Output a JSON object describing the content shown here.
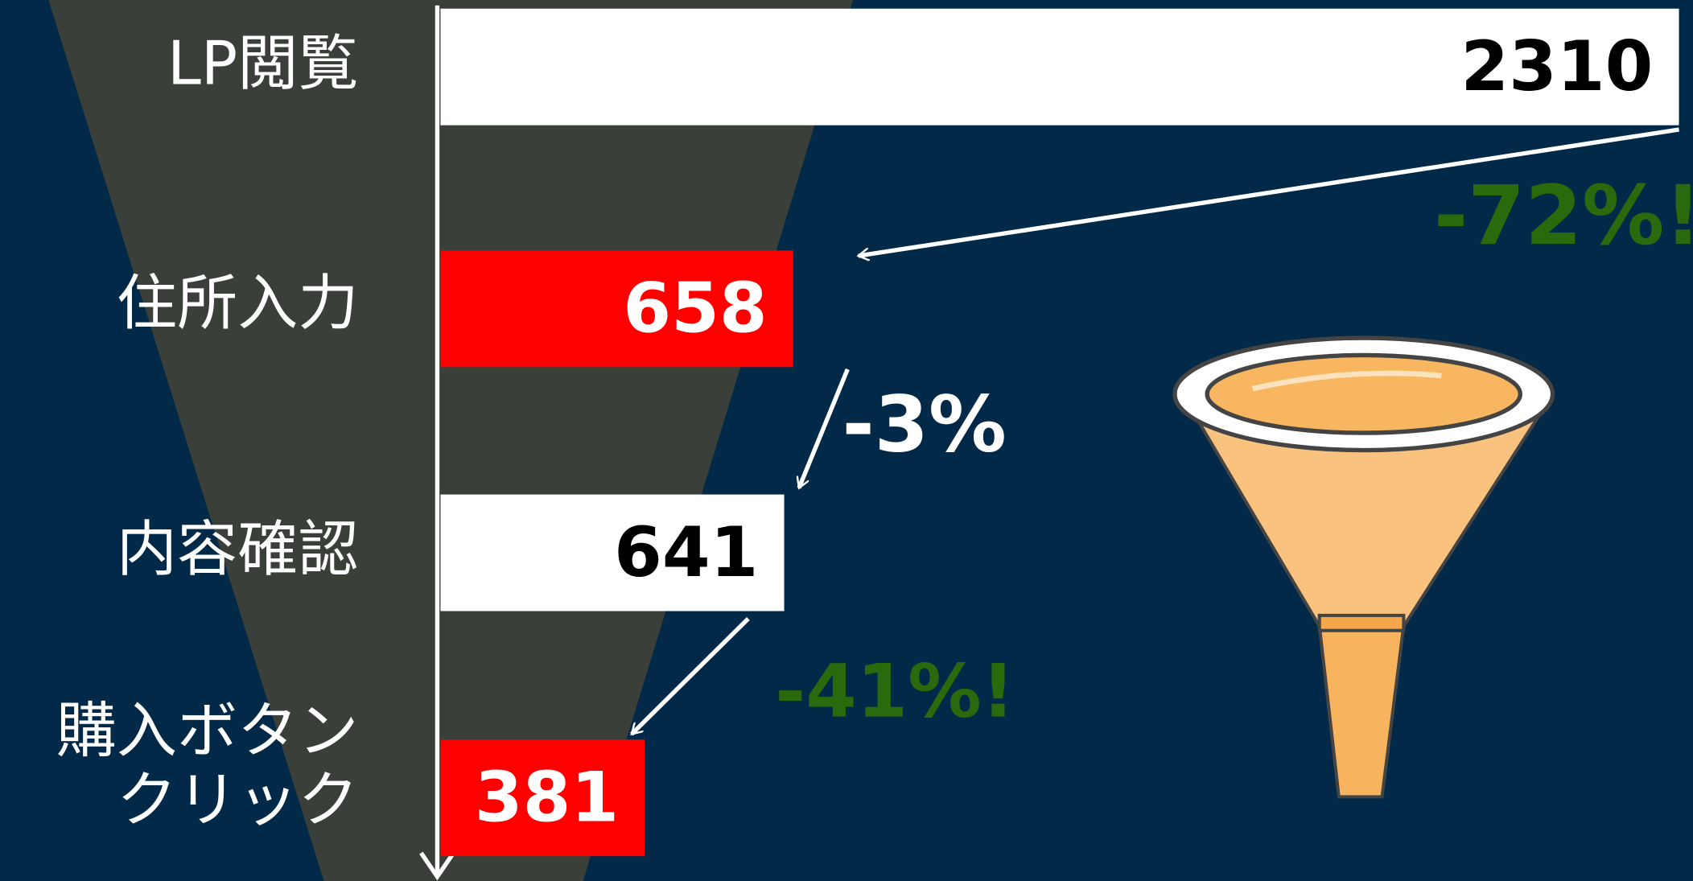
{
  "chart_data": {
    "type": "bar",
    "orientation": "horizontal",
    "categories": [
      "LP閲覧",
      "住所入力",
      "内容確認",
      "購入ボタン\nクリック"
    ],
    "values": [
      2310,
      658,
      641,
      381
    ],
    "colors": [
      "#ffffff",
      "#ff0000",
      "#ffffff",
      "#ff0000"
    ],
    "annotations": [
      "-72%!",
      "-3%",
      "-41%!"
    ],
    "annotation_colors": [
      "#2a6a0c",
      "#ffffff",
      "#2a6a0c"
    ]
  }
}
